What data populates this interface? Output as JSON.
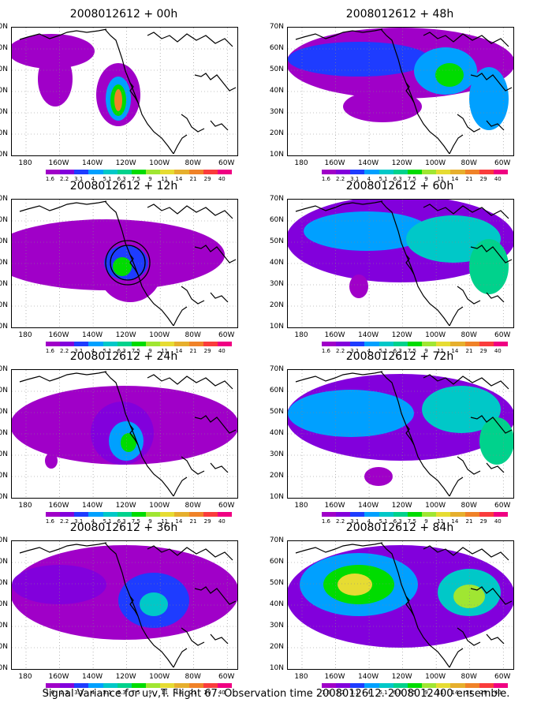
{
  "panels": [
    {
      "title": "2008012612 + 00h",
      "blobs": [
        {
          "cx": 50,
          "cy": 30,
          "rx": 55,
          "ry": 22,
          "lvl": 0
        },
        {
          "cx": 55,
          "cy": 65,
          "rx": 22,
          "ry": 35,
          "lvl": 0
        },
        {
          "cx": 135,
          "cy": 85,
          "rx": 28,
          "ry": 40,
          "lvl": 0
        },
        {
          "cx": 135,
          "cy": 90,
          "rx": 16,
          "ry": 28,
          "lvl": 3
        },
        {
          "cx": 135,
          "cy": 92,
          "rx": 10,
          "ry": 20,
          "lvl": 6
        },
        {
          "cx": 135,
          "cy": 92,
          "rx": 5,
          "ry": 14,
          "lvl": 10
        }
      ]
    },
    {
      "title": "2008012612 + 48h",
      "blobs": [
        {
          "cx": 143,
          "cy": 45,
          "rx": 145,
          "ry": 45,
          "lvl": 0
        },
        {
          "cx": 90,
          "cy": 40,
          "rx": 90,
          "ry": 22,
          "lvl": 2
        },
        {
          "cx": 200,
          "cy": 55,
          "rx": 40,
          "ry": 30,
          "lvl": 3
        },
        {
          "cx": 205,
          "cy": 60,
          "rx": 18,
          "ry": 15,
          "lvl": 6
        },
        {
          "cx": 120,
          "cy": 100,
          "rx": 50,
          "ry": 20,
          "lvl": 0
        },
        {
          "cx": 255,
          "cy": 90,
          "rx": 25,
          "ry": 40,
          "lvl": 3
        }
      ]
    },
    {
      "title": "2008012612 + 12h",
      "blobs": [
        {
          "cx": 120,
          "cy": 70,
          "rx": 150,
          "ry": 45,
          "lvl": 0
        },
        {
          "cx": 150,
          "cy": 90,
          "rx": 40,
          "ry": 40,
          "lvl": 0
        },
        {
          "cx": 145,
          "cy": 80,
          "rx": 28,
          "ry": 22,
          "lvl": 2
        },
        {
          "cx": 140,
          "cy": 85,
          "rx": 12,
          "ry": 12,
          "lvl": 6
        },
        {
          "cx": 60,
          "cy": 90,
          "rx": 25,
          "ry": 20,
          "lvl": 0
        }
      ]
    },
    {
      "title": "2008012612 + 60h",
      "blobs": [
        {
          "cx": 143,
          "cy": 50,
          "rx": 145,
          "ry": 55,
          "lvl": 1
        },
        {
          "cx": 100,
          "cy": 40,
          "rx": 80,
          "ry": 25,
          "lvl": 3
        },
        {
          "cx": 210,
          "cy": 50,
          "rx": 60,
          "ry": 30,
          "lvl": 4
        },
        {
          "cx": 255,
          "cy": 85,
          "rx": 25,
          "ry": 35,
          "lvl": 5
        },
        {
          "cx": 90,
          "cy": 110,
          "rx": 12,
          "ry": 15,
          "lvl": 0
        }
      ]
    },
    {
      "title": "2008012612 + 24h",
      "blobs": [
        {
          "cx": 143,
          "cy": 70,
          "rx": 145,
          "ry": 50,
          "lvl": 0
        },
        {
          "cx": 140,
          "cy": 80,
          "rx": 40,
          "ry": 40,
          "lvl": 1
        },
        {
          "cx": 145,
          "cy": 90,
          "rx": 22,
          "ry": 25,
          "lvl": 3
        },
        {
          "cx": 148,
          "cy": 92,
          "rx": 10,
          "ry": 12,
          "lvl": 6
        },
        {
          "cx": 50,
          "cy": 115,
          "rx": 8,
          "ry": 10,
          "lvl": 0
        }
      ]
    },
    {
      "title": "2008012612 + 72h",
      "blobs": [
        {
          "cx": 143,
          "cy": 60,
          "rx": 145,
          "ry": 55,
          "lvl": 1
        },
        {
          "cx": 80,
          "cy": 55,
          "rx": 80,
          "ry": 30,
          "lvl": 3
        },
        {
          "cx": 220,
          "cy": 50,
          "rx": 50,
          "ry": 30,
          "lvl": 4
        },
        {
          "cx": 265,
          "cy": 90,
          "rx": 22,
          "ry": 30,
          "lvl": 5
        },
        {
          "cx": 115,
          "cy": 135,
          "rx": 18,
          "ry": 12,
          "lvl": 0
        }
      ]
    },
    {
      "title": "2008012612 + 36h",
      "blobs": [
        {
          "cx": 143,
          "cy": 65,
          "rx": 145,
          "ry": 60,
          "lvl": 0
        },
        {
          "cx": 60,
          "cy": 55,
          "rx": 60,
          "ry": 25,
          "lvl": 1
        },
        {
          "cx": 180,
          "cy": 75,
          "rx": 45,
          "ry": 35,
          "lvl": 2
        },
        {
          "cx": 180,
          "cy": 80,
          "rx": 18,
          "ry": 15,
          "lvl": 4
        }
      ]
    },
    {
      "title": "2008012612 + 84h",
      "blobs": [
        {
          "cx": 143,
          "cy": 70,
          "rx": 145,
          "ry": 65,
          "lvl": 1
        },
        {
          "cx": 90,
          "cy": 55,
          "rx": 75,
          "ry": 40,
          "lvl": 3
        },
        {
          "cx": 90,
          "cy": 55,
          "rx": 45,
          "ry": 25,
          "lvl": 6
        },
        {
          "cx": 85,
          "cy": 55,
          "rx": 22,
          "ry": 14,
          "lvl": 8
        },
        {
          "cx": 230,
          "cy": 65,
          "rx": 40,
          "ry": 30,
          "lvl": 4
        },
        {
          "cx": 230,
          "cy": 70,
          "rx": 20,
          "ry": 15,
          "lvl": 7
        }
      ]
    }
  ],
  "lat_labels": [
    "70N",
    "60N",
    "50N",
    "40N",
    "30N",
    "20N",
    "10N"
  ],
  "lon_labels": [
    "180",
    "160W",
    "140W",
    "120W",
    "100W",
    "80W",
    "60W"
  ],
  "colorbar": {
    "labels": [
      "1.6",
      "2.2",
      "3.1",
      "4",
      "5.1",
      "6.3",
      "7.5",
      "9",
      "11",
      "14",
      "21",
      "29",
      "40"
    ],
    "colors": [
      "#a000c8",
      "#8200dc",
      "#1e3cff",
      "#00a0ff",
      "#00c8c8",
      "#00d28c",
      "#00dc00",
      "#a0e632",
      "#e6dc32",
      "#e6af2d",
      "#f08228",
      "#fa3c3c",
      "#f00082"
    ]
  },
  "footer": "Signal Variance for u,v,T. Flight 67. Observation time 2008012612. 2008012400 ensemble."
}
